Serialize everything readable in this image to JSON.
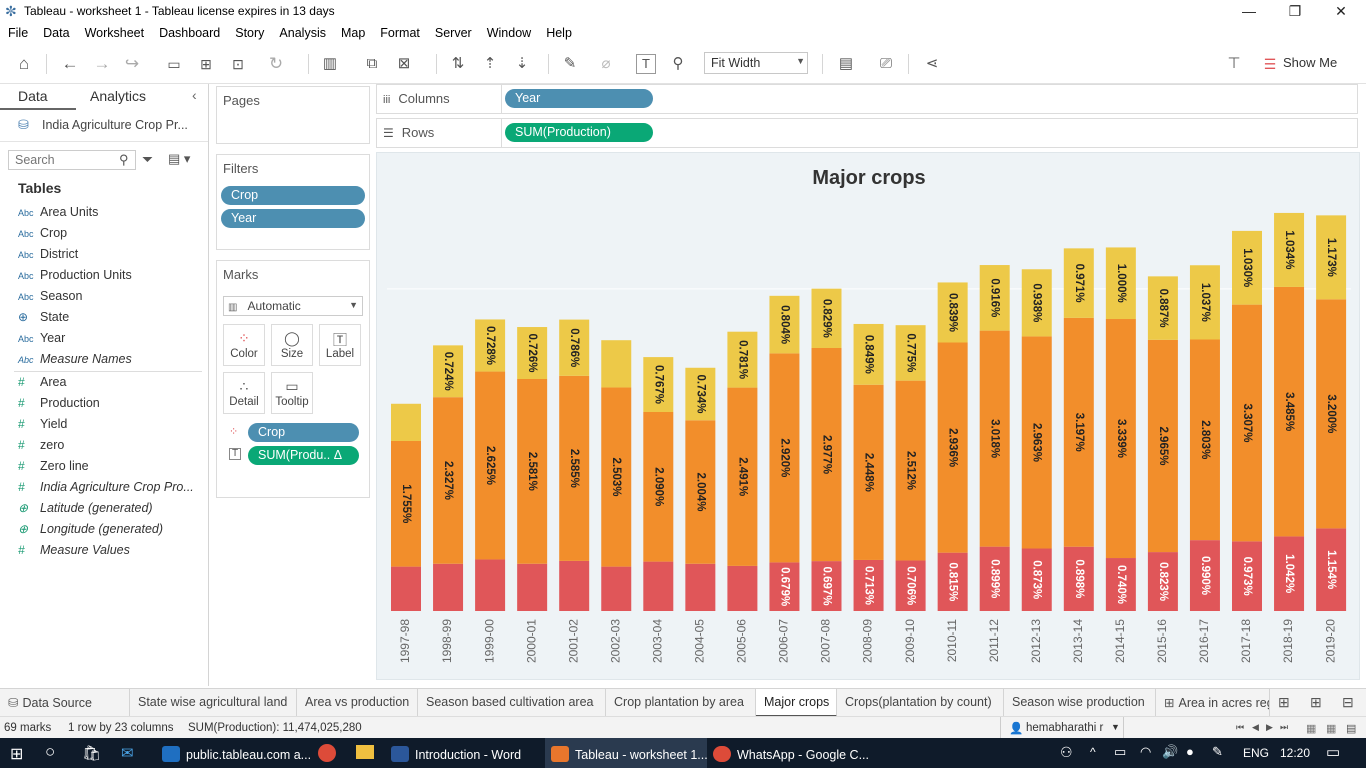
{
  "window": {
    "title": "Tableau - worksheet 1 - Tableau license expires in 13 days"
  },
  "menu": [
    "File",
    "Data",
    "Worksheet",
    "Dashboard",
    "Story",
    "Analysis",
    "Map",
    "Format",
    "Server",
    "Window",
    "Help"
  ],
  "toolbar": {
    "fit": "Fit Width",
    "show_me": "Show Me"
  },
  "left": {
    "tab_data": "Data",
    "tab_analytics": "Analytics",
    "datasource": "India Agriculture Crop Pr...",
    "search_placeholder": "Search",
    "tables_title": "Tables",
    "dimensions": [
      {
        "icon": "Abc",
        "name": "Area Units"
      },
      {
        "icon": "Abc",
        "name": "Crop"
      },
      {
        "icon": "Abc",
        "name": "District"
      },
      {
        "icon": "Abc",
        "name": "Production Units"
      },
      {
        "icon": "Abc",
        "name": "Season"
      },
      {
        "icon": "⊕",
        "name": "State"
      },
      {
        "icon": "Abc",
        "name": "Year"
      },
      {
        "icon": "Abc",
        "name": "Measure Names"
      }
    ],
    "measures": [
      {
        "icon": "#",
        "name": "Area"
      },
      {
        "icon": "#",
        "name": "Production"
      },
      {
        "icon": "#",
        "name": "Yield"
      },
      {
        "icon": "#",
        "name": "zero"
      },
      {
        "icon": "#",
        "name": "Zero line"
      },
      {
        "icon": "#",
        "name": "India Agriculture Crop Pro..."
      },
      {
        "icon": "⊕",
        "name": "Latitude (generated)"
      },
      {
        "icon": "⊕",
        "name": "Longitude (generated)"
      },
      {
        "icon": "#",
        "name": "Measure Values"
      }
    ]
  },
  "pages": {
    "title": "Pages"
  },
  "filters": {
    "title": "Filters",
    "items": [
      "Crop",
      "Year"
    ]
  },
  "marks": {
    "title": "Marks",
    "type": "Automatic",
    "buttons": [
      "Color",
      "Size",
      "Label",
      "Detail",
      "Tooltip"
    ],
    "pills": [
      "Crop",
      "SUM(Produ.. Δ"
    ]
  },
  "shelves": {
    "columns_label": "Columns",
    "columns_pill": "Year",
    "rows_label": "Rows",
    "rows_pill": "SUM(Production)"
  },
  "colors": {
    "red": "#e05659",
    "orange": "#f28e2b",
    "yellow": "#edc948"
  },
  "chart_data": {
    "type": "bar",
    "stacked": true,
    "title": "Major crops",
    "categories": [
      "1997-98",
      "1998-99",
      "1999-00",
      "2000-01",
      "2001-02",
      "2002-03",
      "2003-04",
      "2004-05",
      "2005-06",
      "2006-07",
      "2007-08",
      "2008-09",
      "2009-10",
      "2010-11",
      "2011-12",
      "2012-13",
      "2013-14",
      "2014-15",
      "2015-16",
      "2016-17",
      "2017-18",
      "2018-19",
      "2019-20"
    ],
    "series": [
      {
        "color": "#e05659",
        "values": [
          0.62,
          0.66,
          0.72,
          0.66,
          0.7,
          0.62,
          0.69,
          0.66,
          0.63,
          0.679,
          0.697,
          0.713,
          0.706,
          0.815,
          0.899,
          0.873,
          0.898,
          0.74,
          0.823,
          0.99,
          0.973,
          1.042,
          1.154
        ],
        "labels": [
          "",
          "",
          "",
          "",
          "",
          "",
          "",
          "",
          "",
          "0.679%",
          "0.697%",
          "0.713%",
          "0.706%",
          "0.815%",
          "0.899%",
          "0.873%",
          "0.898%",
          "0.740%",
          "0.823%",
          "0.990%",
          "0.973%",
          "1.042%",
          "1.154%"
        ]
      },
      {
        "color": "#f28e2b",
        "values": [
          1.755,
          2.327,
          2.625,
          2.581,
          2.585,
          2.503,
          2.09,
          2.004,
          2.491,
          2.92,
          2.977,
          2.448,
          2.512,
          2.936,
          3.018,
          2.963,
          3.197,
          3.339,
          2.965,
          2.803,
          3.307,
          3.485,
          3.2
        ],
        "labels": [
          "1.755%",
          "2.327%",
          "2.625%",
          "2.581%",
          "2.585%",
          "2.503%",
          "2.090%",
          "2.004%",
          "2.491%",
          "2.920%",
          "2.977%",
          "2.448%",
          "2.512%",
          "2.936%",
          "3.018%",
          "2.963%",
          "3.197%",
          "3.339%",
          "2.965%",
          "2.803%",
          "3.307%",
          "3.485%",
          "3.200%"
        ]
      },
      {
        "color": "#edc948",
        "values": [
          0.52,
          0.724,
          0.728,
          0.726,
          0.786,
          0.66,
          0.767,
          0.734,
          0.781,
          0.804,
          0.829,
          0.849,
          0.775,
          0.839,
          0.916,
          0.938,
          0.971,
          1.0,
          0.887,
          1.037,
          1.03,
          1.034,
          1.173
        ],
        "labels": [
          "",
          "0.724%",
          "0.728%",
          "0.726%",
          "0.786%",
          "",
          "0.767%",
          "0.734%",
          "0.781%",
          "0.804%",
          "0.829%",
          "0.849%",
          "0.775%",
          "0.839%",
          "0.916%",
          "0.938%",
          "0.971%",
          "1.000%",
          "0.887%",
          "1.037%",
          "1.030%",
          "1.034%",
          "1.173%"
        ]
      }
    ]
  },
  "sheet_tabs": {
    "datasource": "Data Source",
    "tabs": [
      "State wise agricultural land",
      "Area vs production",
      "Season based cultivation area",
      "Crop plantation by area",
      "Major crops",
      "Crops(plantation by count)",
      "Season wise production",
      "Area in acres reg"
    ],
    "active": "Major crops"
  },
  "status": {
    "marks": "69 marks",
    "rows": "1 row by 23 columns",
    "sum": "SUM(Production): 11,474,025,280",
    "user": "hemabharathi r"
  },
  "taskbar": {
    "items": [
      "public.tableau.com a...",
      "Introduction - Word",
      "Tableau - worksheet 1...",
      "WhatsApp - Google C..."
    ],
    "lang": "ENG",
    "time": "12:20"
  }
}
